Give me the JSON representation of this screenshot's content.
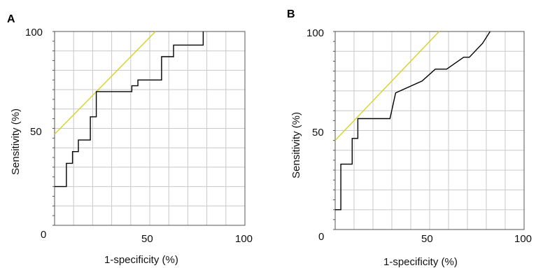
{
  "chart_data": [
    {
      "type": "line",
      "panel": "A",
      "xlabel": "1-specificity (%)",
      "ylabel": "Sensitivity (%)",
      "xlim": [
        0,
        100
      ],
      "ylim": [
        0,
        100
      ],
      "x_ticks": [
        "50",
        "100"
      ],
      "y_ticks": [
        "0",
        "50",
        "100"
      ],
      "grid": true,
      "legend": "none",
      "colors": {
        "roc": "#000000",
        "reference": "#d7d224"
      },
      "series": [
        {
          "x": [
            0,
            6.2,
            6.2,
            9.4,
            9.4,
            12.5,
            12.5,
            18.8,
            18.8,
            21.9,
            21.9,
            40.6,
            40.6,
            43.8,
            43.8,
            56.2,
            56.2,
            62.5,
            62.5,
            78.1,
            78.1
          ],
          "y": [
            20,
            20,
            32,
            32,
            38,
            38,
            44,
            44,
            56,
            56,
            69,
            69,
            72,
            72,
            75,
            75,
            87,
            87,
            93,
            93,
            100
          ]
        },
        {
          "x": [
            0,
            53
          ],
          "y": [
            47,
            100
          ]
        }
      ]
    },
    {
      "type": "line",
      "panel": "B",
      "xlabel": "1-specificity (%)",
      "ylabel": "Sensitivity (%)",
      "xlim": [
        0,
        100
      ],
      "ylim": [
        0,
        100
      ],
      "x_ticks": [
        "0",
        "50",
        "100"
      ],
      "y_ticks": [
        "50",
        "100"
      ],
      "grid": true,
      "legend": "none",
      "colors": {
        "roc": "#000000",
        "reference": "#d7d224"
      },
      "series": [
        {
          "x": [
            0,
            3,
            3,
            9,
            9,
            12,
            12,
            29,
            32,
            46,
            53,
            59,
            68,
            71,
            78,
            82
          ],
          "y": [
            10,
            10,
            33,
            33,
            46,
            46,
            56,
            56,
            69,
            75,
            81,
            81,
            87,
            87,
            94,
            100
          ]
        },
        {
          "x": [
            0,
            55
          ],
          "y": [
            45,
            100
          ]
        }
      ]
    }
  ]
}
